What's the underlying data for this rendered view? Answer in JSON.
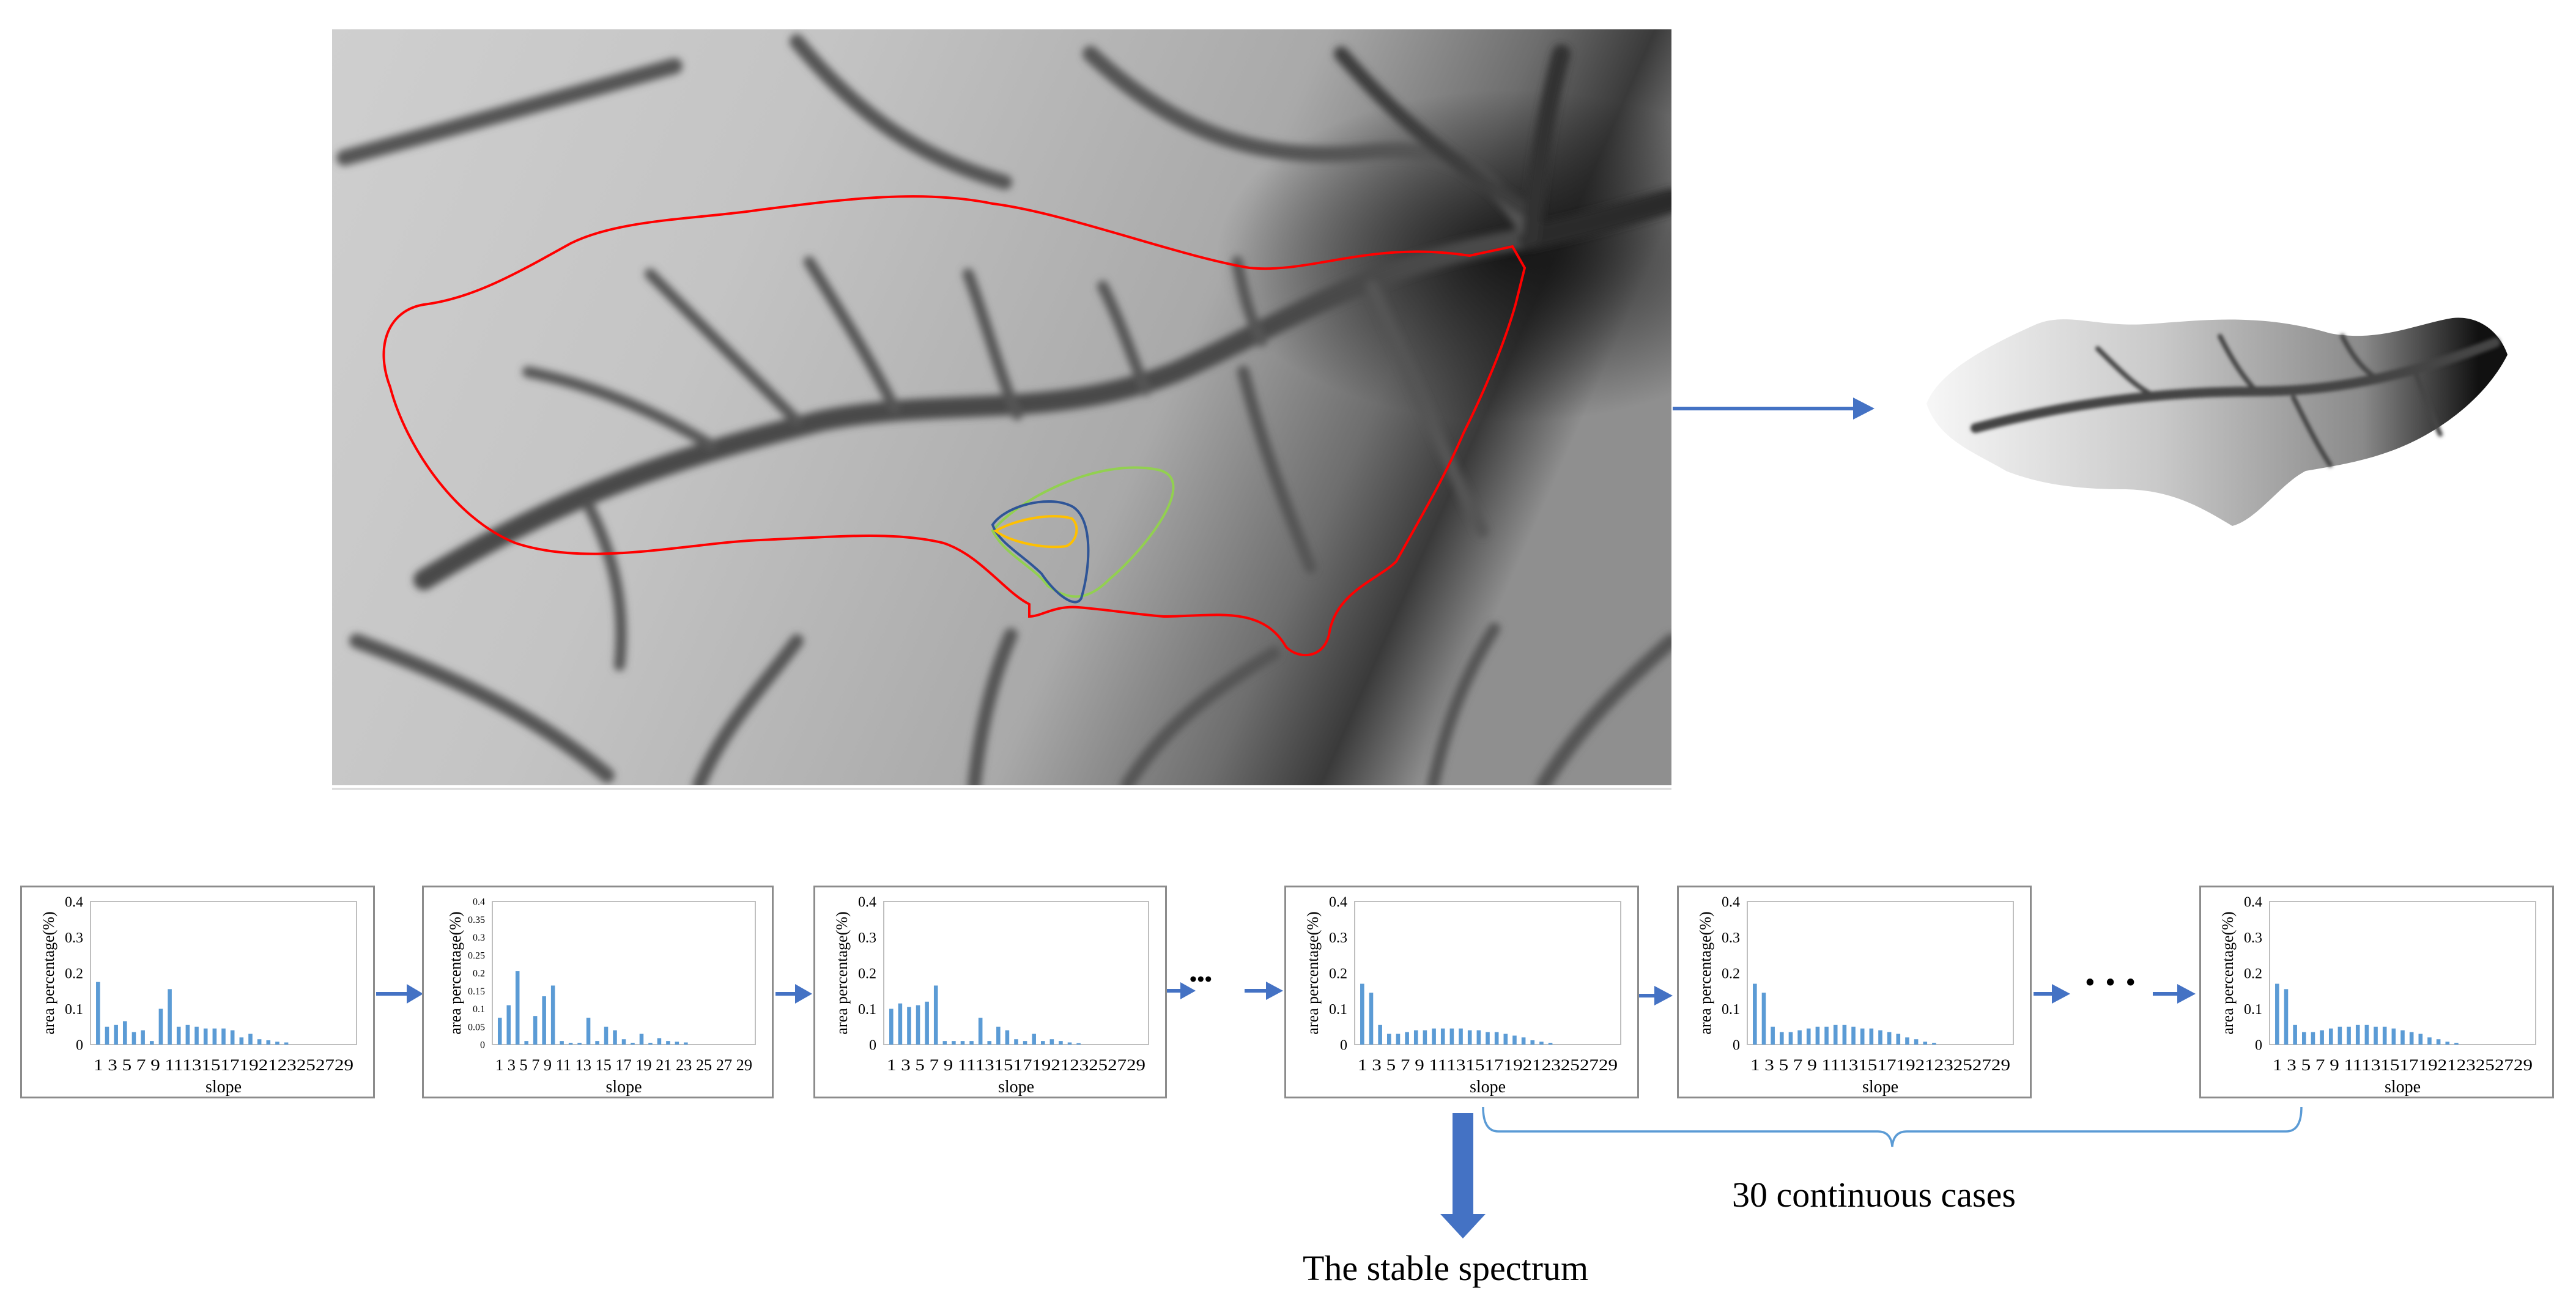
{
  "colors": {
    "watershed_boundary": "#ff0000",
    "sub_boundary_green": "#92d050",
    "sub_boundary_blue": "#2f5597",
    "sub_boundary_orange": "#ffc000",
    "arrow": "#4472c4",
    "bar": "#5b9bd5",
    "brace": "#5b9bd5"
  },
  "labels": {
    "continuous_cases": "30 continuous cases",
    "stable_spectrum": "The stable spectrum",
    "ellipsis": "• • •"
  },
  "chart_data": [
    {
      "type": "bar",
      "ylabel": "area percentage(%)",
      "xlabel": "slope",
      "ylim": [
        0,
        0.4
      ],
      "yticks": [
        "0",
        "0.1",
        "0.2",
        "0.3",
        "0.4"
      ],
      "xtick_labels": "1 3 5 7 9 11131517192123252729",
      "values": [
        0.175,
        0.05,
        0.055,
        0.065,
        0.035,
        0.04,
        0.01,
        0.1,
        0.155,
        0.05,
        0.055,
        0.05,
        0.045,
        0.045,
        0.045,
        0.04,
        0.02,
        0.03,
        0.015,
        0.012,
        0.008,
        0.006,
        0.0,
        0.0,
        0.0,
        0.0,
        0.0,
        0.0,
        0.0
      ]
    },
    {
      "type": "bar",
      "ylabel": "area percentage(%)",
      "xlabel": "slope",
      "ylim": [
        0,
        0.4
      ],
      "yticks": [
        "0",
        "0.05",
        "0.1",
        "0.15",
        "0.2",
        "0.25",
        "0.3",
        "0.35",
        "0.4"
      ],
      "xtick_labels": "1 3 5 7 9 11 13 15 17 19 21 23 25 27 29",
      "values": [
        0.075,
        0.11,
        0.205,
        0.01,
        0.08,
        0.135,
        0.165,
        0.01,
        0.005,
        0.005,
        0.075,
        0.01,
        0.05,
        0.04,
        0.015,
        0.005,
        0.03,
        0.005,
        0.018,
        0.01,
        0.008,
        0.006,
        0.0,
        0.0,
        0.0,
        0.0,
        0.0,
        0.0,
        0.0
      ]
    },
    {
      "type": "bar",
      "ylabel": "area percentage(%)",
      "xlabel": "slope",
      "ylim": [
        0,
        0.4
      ],
      "yticks": [
        "0",
        "0.1",
        "0.2",
        "0.3",
        "0.4"
      ],
      "xtick_labels": "1 3 5 7 9 11131517192123252729",
      "values": [
        0.1,
        0.115,
        0.105,
        0.11,
        0.12,
        0.165,
        0.01,
        0.01,
        0.01,
        0.01,
        0.075,
        0.01,
        0.05,
        0.04,
        0.015,
        0.01,
        0.03,
        0.01,
        0.015,
        0.01,
        0.006,
        0.004,
        0.0,
        0.0,
        0.0,
        0.0,
        0.0,
        0.0,
        0.0
      ]
    },
    {
      "type": "bar",
      "ylabel": "area percentage(%)",
      "xlabel": "slope",
      "ylim": [
        0,
        0.4
      ],
      "yticks": [
        "0",
        "0.1",
        "0.2",
        "0.3",
        "0.4"
      ],
      "xtick_labels": "1 3 5 7 9 11131517192123252729",
      "values": [
        0.17,
        0.145,
        0.055,
        0.03,
        0.03,
        0.035,
        0.04,
        0.04,
        0.045,
        0.045,
        0.045,
        0.045,
        0.04,
        0.04,
        0.035,
        0.035,
        0.03,
        0.025,
        0.02,
        0.012,
        0.008,
        0.005,
        0.0,
        0.0,
        0.0,
        0.0,
        0.0,
        0.0,
        0.0
      ]
    },
    {
      "type": "bar",
      "ylabel": "area percentage(%)",
      "xlabel": "slope",
      "ylim": [
        0,
        0.4
      ],
      "yticks": [
        "0",
        "0.1",
        "0.2",
        "0.3",
        "0.4"
      ],
      "xtick_labels": "1 3 5 7 9 11131517192123252729",
      "values": [
        0.17,
        0.145,
        0.05,
        0.035,
        0.035,
        0.04,
        0.045,
        0.05,
        0.05,
        0.055,
        0.055,
        0.05,
        0.045,
        0.045,
        0.04,
        0.035,
        0.03,
        0.02,
        0.015,
        0.008,
        0.005,
        0.0,
        0.0,
        0.0,
        0.0,
        0.0,
        0.0,
        0.0,
        0.0
      ]
    },
    {
      "type": "bar",
      "ylabel": "area percentage(%)",
      "xlabel": "slope",
      "ylim": [
        0,
        0.4
      ],
      "yticks": [
        "0",
        "0.1",
        "0.2",
        "0.3",
        "0.4"
      ],
      "xtick_labels": "1 3 5 7 9 11131517192123252729",
      "values": [
        0.17,
        0.155,
        0.055,
        0.035,
        0.035,
        0.04,
        0.045,
        0.05,
        0.05,
        0.055,
        0.055,
        0.05,
        0.05,
        0.045,
        0.04,
        0.035,
        0.03,
        0.02,
        0.015,
        0.008,
        0.005,
        0.0,
        0.0,
        0.0,
        0.0,
        0.0,
        0.0,
        0.0,
        0.0
      ]
    }
  ]
}
